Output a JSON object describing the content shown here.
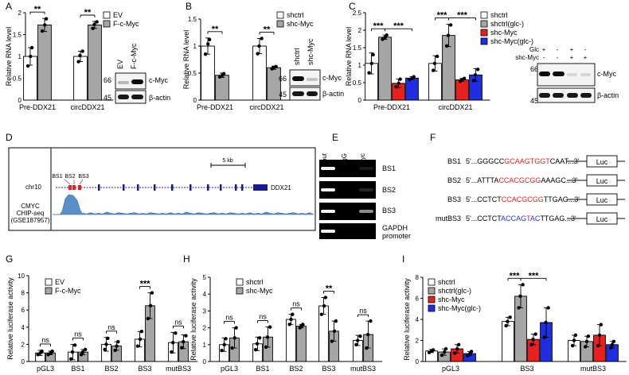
{
  "colors": {
    "gray": "#a6a6a6",
    "red": "#e8201e",
    "blue": "#1f2ee0",
    "white": "#ffffff",
    "chip_fill": "#5a8fc6",
    "chip_line": "#2f5f94",
    "gene_line": "#1b1b8f",
    "highlight_red": "#e3221f",
    "highlight_blue": "#2333d9"
  },
  "panel_labels": [
    "A",
    "B",
    "C",
    "D",
    "E",
    "F",
    "G",
    "H",
    "I"
  ],
  "chart_data": [
    {
      "panel": "A",
      "type": "bar",
      "ylabel": "Relative RNA level",
      "ylim": [
        0,
        2.0
      ],
      "yticks": [
        0,
        0.5,
        1.0,
        1.5,
        2.0
      ],
      "categories": [
        "Pre-DDX21",
        "circDDX21"
      ],
      "series": [
        {
          "name": "EV",
          "color": "white",
          "values": [
            1.0,
            1.0
          ],
          "errors": [
            0.2,
            0.12
          ],
          "points": [
            [
              0.78,
              1.0,
              1.2
            ],
            [
              0.88,
              1.02,
              1.12
            ]
          ]
        },
        {
          "name": "F-c-Myc",
          "color": "gray",
          "values": [
            1.72,
            1.72
          ],
          "errors": [
            0.15,
            0.08
          ],
          "points": [
            [
              1.58,
              1.72,
              1.86
            ],
            [
              1.64,
              1.73,
              1.79
            ]
          ]
        }
      ],
      "significance": [
        {
          "category": 0,
          "label": "**"
        },
        {
          "category": 1,
          "label": "**"
        }
      ]
    },
    {
      "panel": "B",
      "type": "bar",
      "ylabel": "Relative RNA level",
      "ylim": [
        0,
        1.5
      ],
      "yticks": [
        0,
        0.5,
        1.0,
        1.5
      ],
      "categories": [
        "Pre-DDX21",
        "circDDX21"
      ],
      "series": [
        {
          "name": "shctrl",
          "color": "white",
          "values": [
            1.0,
            1.0
          ],
          "errors": [
            0.15,
            0.14
          ],
          "points": [
            [
              0.85,
              1.04,
              1.12
            ],
            [
              0.86,
              1.0,
              1.14
            ]
          ]
        },
        {
          "name": "shc-Myc",
          "color": "gray",
          "values": [
            0.46,
            0.6
          ],
          "errors": [
            0.04,
            0.03
          ],
          "points": [
            [
              0.43,
              0.46,
              0.49
            ],
            [
              0.58,
              0.6,
              0.62
            ]
          ]
        }
      ],
      "significance": [
        {
          "category": 0,
          "label": "**"
        },
        {
          "category": 1,
          "label": "**"
        }
      ]
    },
    {
      "panel": "C",
      "type": "bar",
      "ylabel": "Relative RNA level",
      "ylim": [
        0,
        2.5
      ],
      "yticks": [
        0,
        0.5,
        1.0,
        1.5,
        2.0,
        2.5
      ],
      "categories": [
        "Pre-DDX21",
        "circDDX21"
      ],
      "series": [
        {
          "name": "shctrl",
          "color": "white",
          "values": [
            1.05,
            1.05
          ],
          "errors": [
            0.3,
            0.22
          ],
          "points": [
            [
              0.78,
              1.05,
              1.3
            ],
            [
              0.85,
              1.05,
              1.25
            ]
          ]
        },
        {
          "name": "shctrl(glc-)",
          "color": "gray",
          "values": [
            1.8,
            1.85
          ],
          "errors": [
            0.06,
            0.32
          ],
          "points": [
            [
              1.74,
              1.8,
              1.86
            ],
            [
              1.55,
              1.85,
              2.15
            ]
          ]
        },
        {
          "name": "shc-Myc",
          "color": "red",
          "values": [
            0.48,
            0.58
          ],
          "errors": [
            0.12,
            0.04
          ],
          "points": [
            [
              0.38,
              0.48,
              0.6
            ],
            [
              0.54,
              0.58,
              0.62
            ]
          ]
        },
        {
          "name": "shc-Myc(glc-)",
          "color": "blue",
          "values": [
            0.63,
            0.72
          ],
          "errors": [
            0.04,
            0.18
          ],
          "points": [
            [
              0.59,
              0.63,
              0.67
            ],
            [
              0.56,
              0.72,
              0.88
            ]
          ]
        }
      ],
      "significance": [
        {
          "from": [
            0,
            0
          ],
          "to": [
            0,
            1
          ],
          "label": "***"
        },
        {
          "from": [
            0,
            1
          ],
          "to": [
            0,
            3
          ],
          "label": "***"
        },
        {
          "from": [
            1,
            0
          ],
          "to": [
            1,
            1
          ],
          "label": "***"
        },
        {
          "from": [
            1,
            1
          ],
          "to": [
            1,
            3
          ],
          "label": "***"
        }
      ]
    },
    {
      "panel": "G",
      "type": "bar",
      "ylabel": "Relative luciferase activity",
      "ylim": [
        0,
        10
      ],
      "yticks": [
        0,
        2,
        4,
        6,
        8,
        10
      ],
      "categories": [
        "pGL3",
        "BS1",
        "BS2",
        "BS3",
        "mutBS3"
      ],
      "series": [
        {
          "name": "EV",
          "color": "white",
          "values": [
            1.0,
            1.1,
            2.0,
            2.6,
            2.2
          ],
          "errors": [
            0.3,
            0.9,
            0.8,
            0.9,
            1.2
          ],
          "points": [
            [
              0.8,
              1.0,
              1.2
            ],
            [
              0.3,
              1.1,
              1.9
            ],
            [
              1.4,
              2.0,
              2.7
            ],
            [
              1.8,
              2.6,
              3.5
            ],
            [
              1.1,
              2.2,
              3.3
            ]
          ]
        },
        {
          "name": "F-c-Myc",
          "color": "gray",
          "values": [
            1.0,
            1.1,
            1.8,
            6.5,
            2.3
          ],
          "errors": [
            0.2,
            0.3,
            0.5,
            1.5,
            0.8
          ],
          "points": [
            [
              0.8,
              1.0,
              1.2
            ],
            [
              0.8,
              1.1,
              1.4
            ],
            [
              1.3,
              1.8,
              2.3
            ],
            [
              5.0,
              6.5,
              8.0
            ],
            [
              1.6,
              2.3,
              3.0
            ]
          ]
        }
      ],
      "significance": [
        {
          "category": 0,
          "label": "ns"
        },
        {
          "category": 1,
          "label": "ns"
        },
        {
          "category": 2,
          "label": "ns"
        },
        {
          "category": 3,
          "label": "***"
        },
        {
          "category": 4,
          "label": "ns"
        }
      ]
    },
    {
      "panel": "H",
      "type": "bar",
      "ylabel": "Relative luciferase activity",
      "ylim": [
        0,
        5
      ],
      "yticks": [
        0,
        1,
        2,
        3,
        4,
        5
      ],
      "categories": [
        "pGL3",
        "BS1",
        "BS2",
        "BS3",
        "mutBS3"
      ],
      "series": [
        {
          "name": "shctrl",
          "color": "white",
          "values": [
            1.0,
            1.05,
            2.5,
            3.3,
            1.25
          ],
          "errors": [
            0.4,
            0.4,
            0.3,
            0.5,
            0.3
          ],
          "points": [
            [
              0.65,
              1.0,
              1.35
            ],
            [
              0.7,
              1.05,
              1.4
            ],
            [
              2.2,
              2.5,
              2.8
            ],
            [
              2.8,
              3.3,
              3.8
            ],
            [
              1.0,
              1.25,
              1.5
            ]
          ]
        },
        {
          "name": "shc-Myc",
          "color": "gray",
          "values": [
            1.4,
            1.45,
            2.1,
            1.8,
            1.6
          ],
          "errors": [
            0.6,
            0.6,
            0.1,
            0.6,
            0.8
          ],
          "points": [
            [
              0.8,
              1.4,
              2.0
            ],
            [
              0.85,
              1.45,
              2.05
            ],
            [
              2.0,
              2.1,
              2.2
            ],
            [
              1.2,
              1.8,
              2.4
            ],
            [
              0.8,
              1.6,
              2.4
            ]
          ]
        }
      ],
      "significance": [
        {
          "category": 0,
          "label": "ns"
        },
        {
          "category": 1,
          "label": "ns"
        },
        {
          "category": 2,
          "label": "ns"
        },
        {
          "category": 3,
          "label": "**"
        },
        {
          "category": 4,
          "label": "ns"
        }
      ]
    },
    {
      "panel": "I",
      "type": "bar",
      "ylabel": "Relative luciferase activity",
      "ylim": [
        0,
        8
      ],
      "yticks": [
        0,
        2,
        4,
        6,
        8
      ],
      "categories": [
        "pGL3",
        "BS3",
        "mutBS3"
      ],
      "series": [
        {
          "name": "shctrl",
          "color": "white",
          "values": [
            1.0,
            3.8,
            2.0
          ],
          "errors": [
            0.15,
            0.4,
            0.5
          ],
          "points": [
            [
              0.85,
              1.0,
              1.1
            ],
            [
              3.4,
              3.8,
              4.2
            ],
            [
              1.5,
              2.0,
              2.5
            ]
          ]
        },
        {
          "name": "shctrl(glc-)",
          "color": "gray",
          "values": [
            0.9,
            6.2,
            1.9
          ],
          "errors": [
            0.3,
            1.1,
            0.5
          ],
          "points": [
            [
              0.6,
              0.9,
              1.2
            ],
            [
              5.1,
              6.2,
              7.3
            ],
            [
              1.4,
              1.9,
              2.4
            ]
          ]
        },
        {
          "name": "shc-Myc",
          "color": "red",
          "values": [
            1.2,
            2.1,
            2.5
          ],
          "errors": [
            0.4,
            0.5,
            1.0
          ],
          "points": [
            [
              0.8,
              1.2,
              1.6
            ],
            [
              1.6,
              2.1,
              2.6
            ],
            [
              1.5,
              2.5,
              3.5
            ]
          ]
        },
        {
          "name": "shc-Myc(glc-)",
          "color": "blue",
          "values": [
            0.75,
            3.7,
            1.6
          ],
          "errors": [
            0.2,
            1.4,
            0.3
          ],
          "points": [
            [
              0.55,
              0.75,
              0.95
            ],
            [
              2.3,
              3.7,
              5.1
            ],
            [
              1.3,
              1.6,
              1.9
            ]
          ]
        }
      ],
      "significance": [
        {
          "from": [
            1,
            0
          ],
          "to": [
            1,
            1
          ],
          "label": "***"
        },
        {
          "from": [
            1,
            1
          ],
          "to": [
            1,
            3
          ],
          "label": "***"
        }
      ]
    }
  ],
  "blots": {
    "A": {
      "lanes": [
        "EV",
        "F-c-Myc"
      ],
      "markers": [
        "66",
        "45"
      ],
      "bands": [
        "c-Myc",
        "β-actin"
      ]
    },
    "B": {
      "lanes": [
        "shctrl",
        "shc-Myc"
      ],
      "markers": [
        "66",
        "45"
      ],
      "bands": [
        "c-Myc",
        "β-actin"
      ]
    },
    "C": {
      "rows": [
        {
          "label": "Glc",
          "signs": [
            "+",
            "-",
            "+",
            "-"
          ]
        },
        {
          "label": "shc-Myc",
          "signs": [
            "-",
            "-",
            "+",
            "+"
          ]
        }
      ],
      "markers": [
        "66",
        "45"
      ],
      "bands": [
        "c-Myc",
        "β-actin"
      ]
    }
  },
  "genome": {
    "chr": "chr10",
    "track": [
      "CMYC",
      "CHIP-seq",
      "(GSE187957)"
    ],
    "scale": "5 kb",
    "gene": "DDX21",
    "sites": [
      "BS1",
      "BS2",
      "BS3"
    ]
  },
  "gel": {
    "lanes": [
      "Input",
      "IgG",
      "c-Myc"
    ],
    "rows": [
      "BS1",
      "BS2",
      "BS3",
      "GAPDH promoter"
    ]
  },
  "constructs": [
    {
      "name": "BS1",
      "segments": [
        {
          "t": "5'...GGGCC",
          "c": "k"
        },
        {
          "t": "GCAAGTGGT",
          "c": "r"
        },
        {
          "t": "CAAT...3'",
          "c": "k"
        }
      ],
      "box": "Luc"
    },
    {
      "name": "BS2",
      "segments": [
        {
          "t": "5'...ATTTA",
          "c": "k"
        },
        {
          "t": "CCACGCGG",
          "c": "r"
        },
        {
          "t": "AAAGC...3'",
          "c": "k"
        }
      ],
      "box": "Luc"
    },
    {
      "name": "BS3",
      "segments": [
        {
          "t": "5'...CCTCT",
          "c": "k"
        },
        {
          "t": "CCACGCGG",
          "c": "r"
        },
        {
          "t": "TTGAG...3'",
          "c": "k"
        }
      ],
      "box": "Luc"
    },
    {
      "name": "mutBS3",
      "segments": [
        {
          "t": "5'...CCTCT",
          "c": "k"
        },
        {
          "t": "ACCAG",
          "c": "b"
        },
        {
          "t": "T",
          "c": "r"
        },
        {
          "t": "AC",
          "c": "b"
        },
        {
          "t": "TTGAG...3'",
          "c": "k"
        }
      ],
      "box": "Luc"
    }
  ]
}
